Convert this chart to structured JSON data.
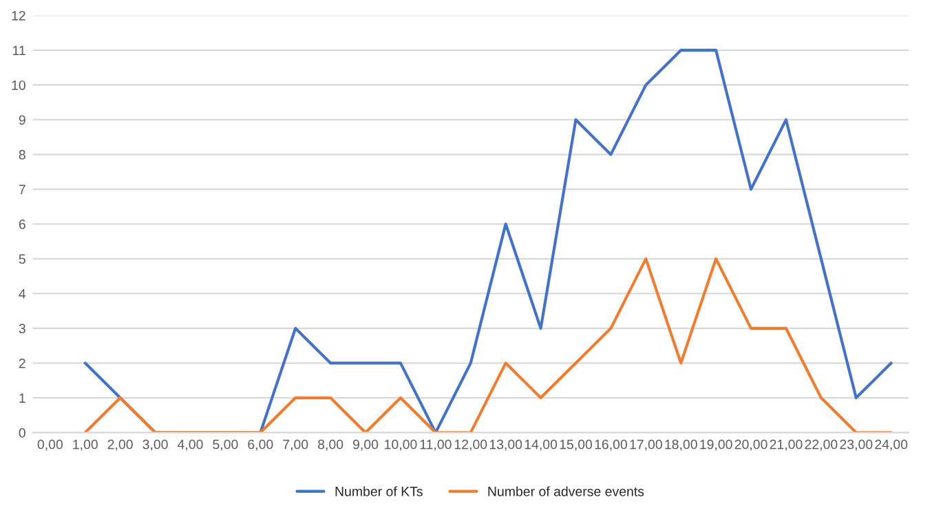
{
  "chart_data": {
    "type": "line",
    "categories": [
      "0,00",
      "1,00",
      "2,00",
      "3,00",
      "4,00",
      "5,00",
      "6,00",
      "7,00",
      "8,00",
      "9,00",
      "10,00",
      "11,00",
      "12,00",
      "13,00",
      "14,00",
      "15,00",
      "16,00",
      "17,00",
      "18,00",
      "19,00",
      "20,00",
      "21,00",
      "22,00",
      "23,00",
      "24,00"
    ],
    "series": [
      {
        "name": "Number of KTs",
        "color": "#4472c4",
        "values": [
          null,
          2,
          1,
          0,
          0,
          0,
          0,
          3,
          2,
          2,
          2,
          0,
          2,
          6,
          3,
          9,
          8,
          10,
          11,
          11,
          7,
          9,
          5,
          1,
          2
        ]
      },
      {
        "name": "Number of adverse events",
        "color": "#ed7d31",
        "values": [
          null,
          0,
          1,
          0,
          0,
          0,
          0,
          1,
          1,
          0,
          1,
          0,
          0,
          2,
          1,
          2,
          3,
          5,
          2,
          5,
          3,
          3,
          1,
          0,
          0
        ]
      }
    ],
    "ylim": [
      0,
      12
    ],
    "yticks": [
      0,
      1,
      2,
      3,
      4,
      5,
      6,
      7,
      8,
      9,
      10,
      11,
      12
    ],
    "grid": "y",
    "legend": "bottom",
    "line_style": "solid",
    "marker": "none"
  }
}
